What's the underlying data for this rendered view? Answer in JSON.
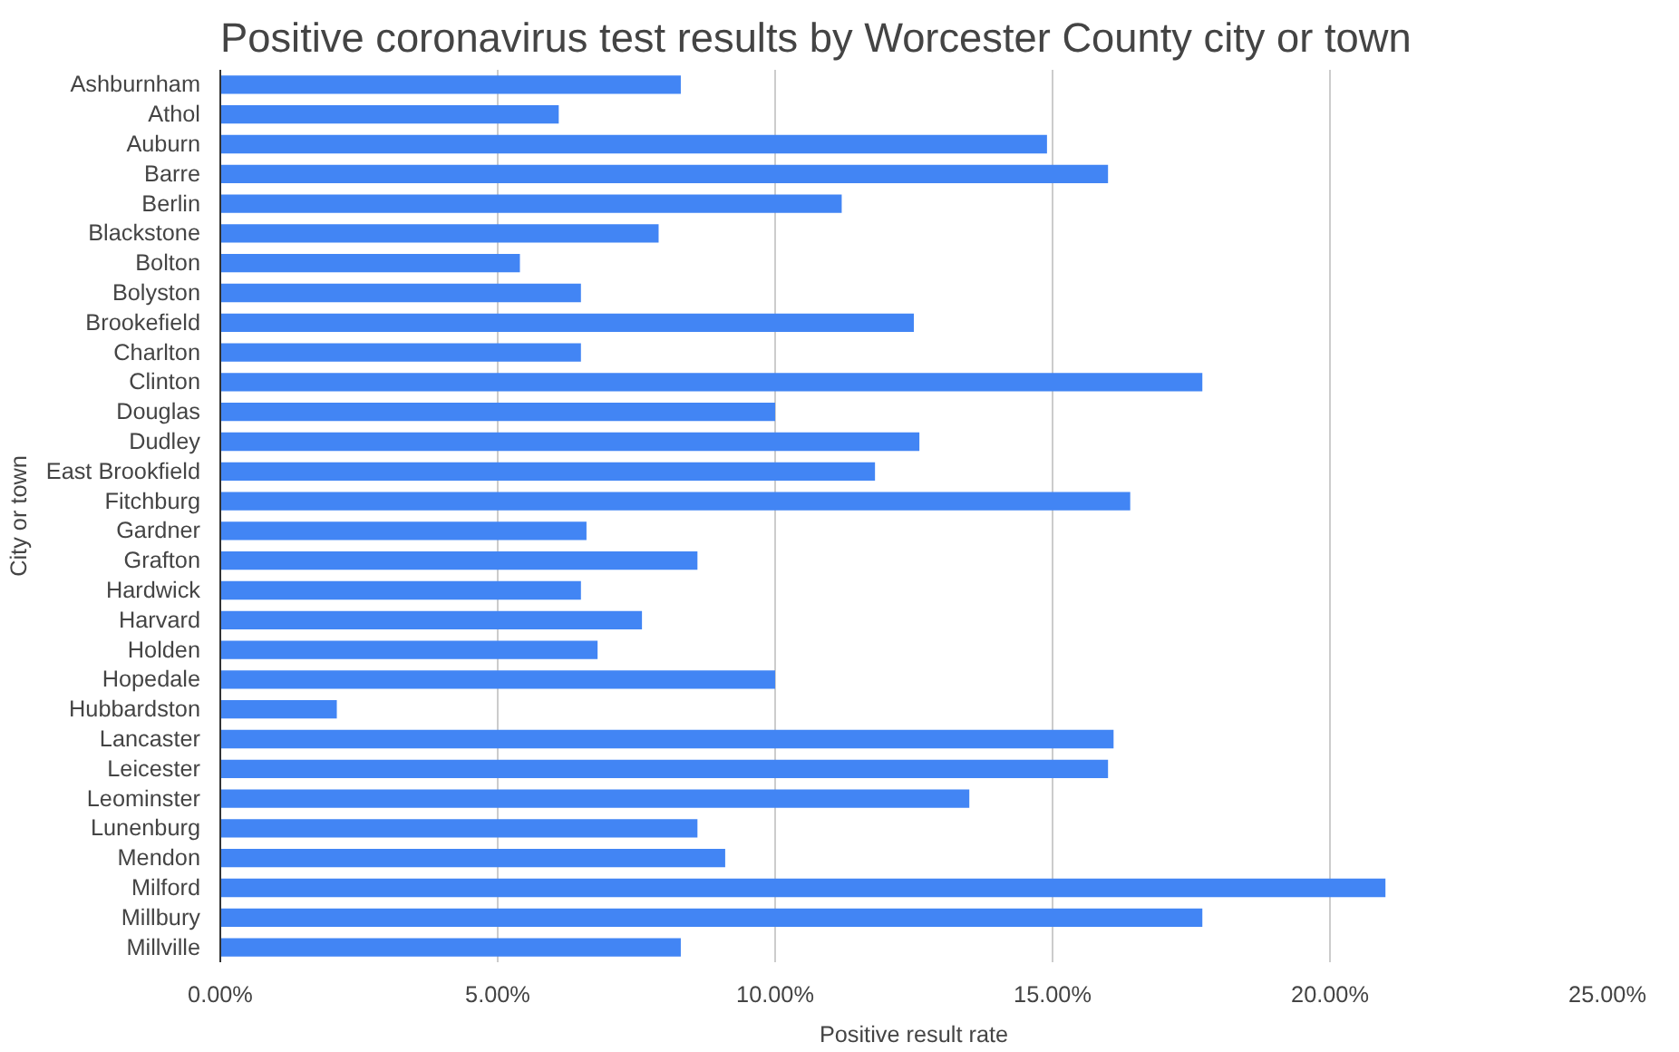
{
  "chart_data": {
    "type": "bar",
    "orientation": "horizontal",
    "title": "Positive coronavirus test results by Worcester County city or town",
    "xlabel": "Positive result rate",
    "ylabel": "City or town",
    "categories": [
      "Ashburnham",
      "Athol",
      "Auburn",
      "Barre",
      "Berlin",
      "Blackstone",
      "Bolton",
      "Bolyston",
      "Brookefield",
      "Charlton",
      "Clinton",
      "Douglas",
      "Dudley",
      "East Brookfield",
      "Fitchburg",
      "Gardner",
      "Grafton",
      "Hardwick",
      "Harvard",
      "Holden",
      "Hopedale",
      "Hubbardston",
      "Lancaster",
      "Leicester",
      "Leominster",
      "Lunenburg",
      "Mendon",
      "Milford",
      "Millbury",
      "Millville"
    ],
    "series": [
      {
        "color": "#4285f4",
        "values": [
          8.3,
          6.1,
          14.9,
          16.0,
          11.2,
          7.9,
          5.4,
          6.5,
          12.5,
          6.5,
          17.7,
          10.0,
          12.6,
          11.8,
          16.4,
          6.6,
          8.6,
          6.5,
          7.6,
          6.8,
          10.0,
          2.1,
          16.1,
          16.0,
          13.5,
          8.6,
          9.1,
          21.0,
          17.7,
          8.3
        ]
      }
    ],
    "xlim": [
      0,
      25
    ],
    "xticks": [
      {
        "value": 0,
        "label": "0.00%"
      },
      {
        "value": 5,
        "label": "5.00%"
      },
      {
        "value": 10,
        "label": "10.00%"
      },
      {
        "value": 15,
        "label": "15.00%"
      },
      {
        "value": 20,
        "label": "20.00%"
      },
      {
        "value": 25,
        "label": "25.00%"
      }
    ],
    "grid": "x"
  }
}
